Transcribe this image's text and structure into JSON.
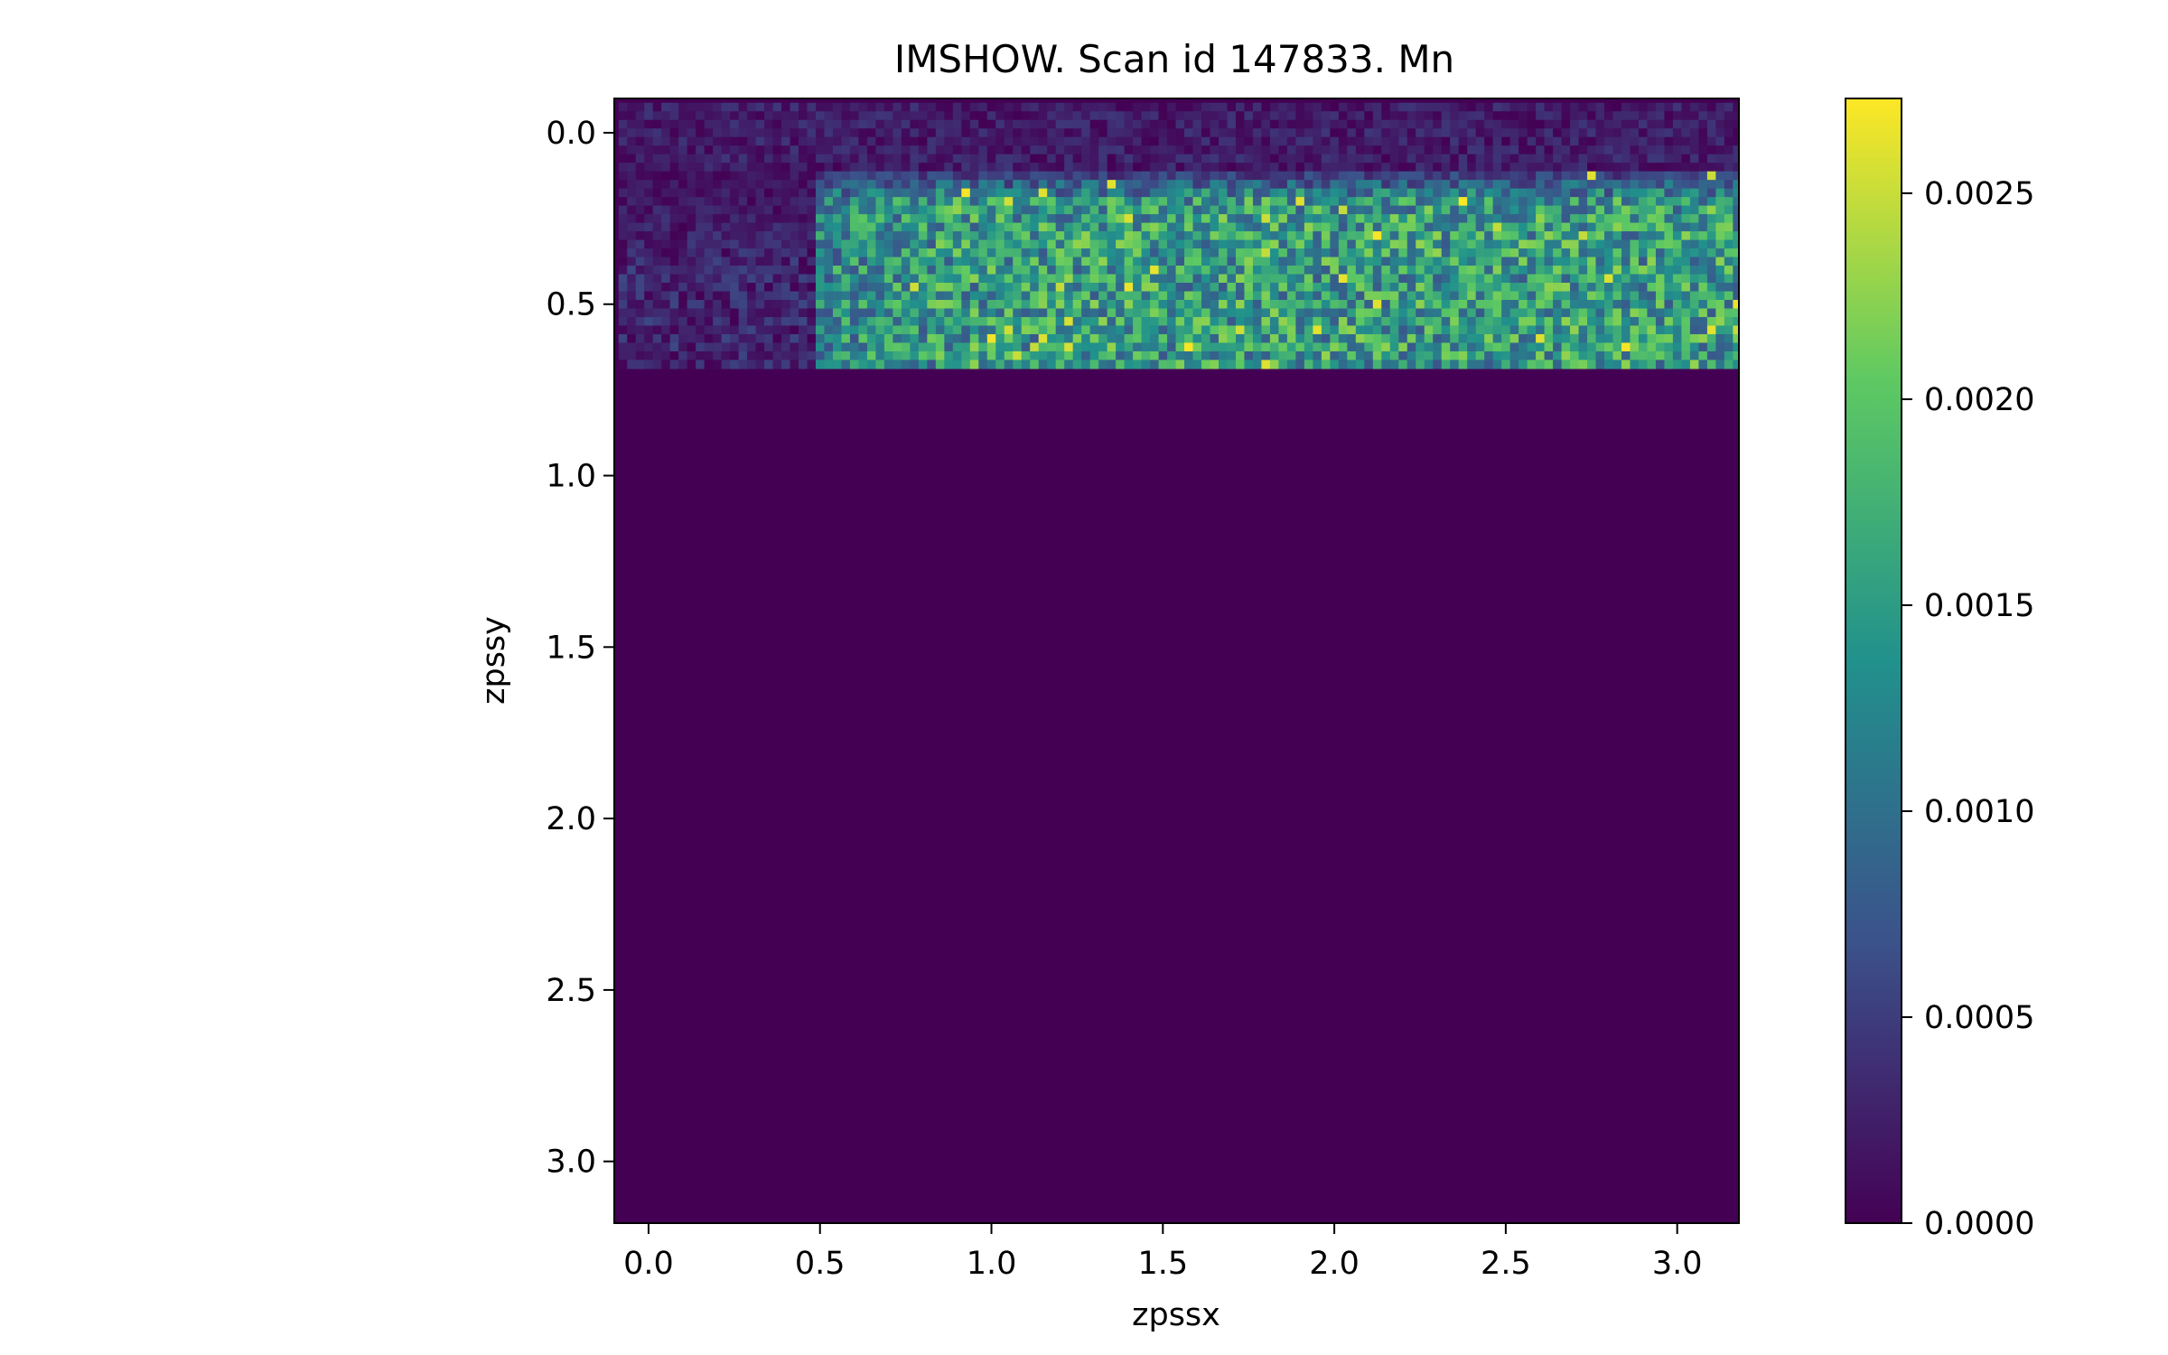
{
  "chart_data": {
    "type": "heatmap",
    "title": "IMSHOW. Scan id 147833. Mn",
    "xlabel": "zpssx",
    "ylabel": "zpssy",
    "x_ticks": [
      "0.0",
      "0.5",
      "1.0",
      "1.5",
      "2.0",
      "2.5",
      "3.0"
    ],
    "y_ticks": [
      "0.0",
      "0.5",
      "1.0",
      "1.5",
      "2.0",
      "2.5",
      "3.0"
    ],
    "colorbar_ticks": [
      "0.0000",
      "0.0005",
      "0.0010",
      "0.0015",
      "0.0020",
      "0.0025"
    ],
    "xlim": [
      -0.1,
      3.18
    ],
    "ylim": [
      3.18,
      -0.1
    ],
    "vmin": 0.0,
    "vmax": 0.00273,
    "colormap": "viridis",
    "grid": false,
    "grid_shape": {
      "cols": 132,
      "rows": 132
    },
    "cell_size": 0.025,
    "measured_rows": 31,
    "active_x_start": 0.5,
    "data_summary": {
      "empty_region_value": 0.0,
      "left_band_mean": 0.0003,
      "main_band_mean": 0.00155,
      "main_band_max": 0.00273
    }
  }
}
